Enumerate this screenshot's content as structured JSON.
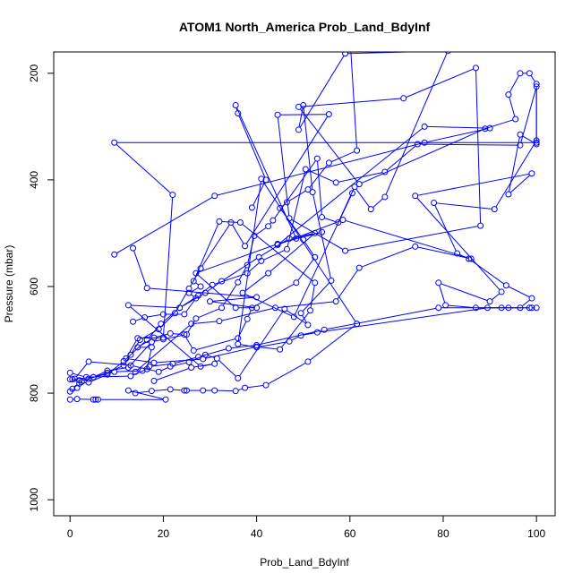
{
  "chart_data": {
    "type": "line",
    "title": "ATOM1 North_America Prob_Land_BdyInf",
    "xlabel": "Prob_Land_BdyInf",
    "ylabel": "Pressure (mbar)",
    "xlim": [
      -3.5,
      104
    ],
    "ylim": [
      1030,
      160
    ],
    "y_inverted": true,
    "grid": false,
    "legend": "none",
    "x_ticks": [
      0,
      20,
      40,
      60,
      80,
      100
    ],
    "y_ticks": [
      200,
      400,
      600,
      800,
      1000
    ],
    "series": [
      {
        "marker": "open-circle",
        "color": "#0000ff",
        "points": [
          {
            "x": 0,
            "y": 812
          },
          {
            "x": 1.5,
            "y": 811
          },
          {
            "x": 5,
            "y": 812
          },
          {
            "x": 5.5,
            "y": 812
          },
          {
            "x": 6,
            "y": 812
          },
          {
            "x": 20.5,
            "y": 812
          },
          {
            "x": 12.5,
            "y": 795
          },
          {
            "x": 14,
            "y": 800
          },
          {
            "x": 17.5,
            "y": 796
          },
          {
            "x": 21.5,
            "y": 793
          },
          {
            "x": 24.5,
            "y": 795
          },
          {
            "x": 25,
            "y": 795
          },
          {
            "x": 28.5,
            "y": 795
          },
          {
            "x": 31,
            "y": 795
          },
          {
            "x": 35.5,
            "y": 796
          },
          {
            "x": 37.5,
            "y": 790
          },
          {
            "x": 42,
            "y": 785
          },
          {
            "x": 51,
            "y": 741
          },
          {
            "x": 61.5,
            "y": 670
          },
          {
            "x": 41,
            "y": 398
          },
          {
            "x": 36,
            "y": 708
          },
          {
            "x": 40,
            "y": 714
          },
          {
            "x": 47,
            "y": 703
          },
          {
            "x": 49.5,
            "y": 692
          },
          {
            "x": 53,
            "y": 686
          },
          {
            "x": 89.5,
            "y": 640
          },
          {
            "x": 94,
            "y": 640
          },
          {
            "x": 98.5,
            "y": 640
          },
          {
            "x": 100,
            "y": 640
          },
          {
            "x": 99,
            "y": 640
          },
          {
            "x": 87,
            "y": 640
          },
          {
            "x": 80.5,
            "y": 635
          },
          {
            "x": 79,
            "y": 593
          },
          {
            "x": 90,
            "y": 628
          },
          {
            "x": 92.5,
            "y": 610
          },
          {
            "x": 74,
            "y": 430
          },
          {
            "x": 99,
            "y": 388
          },
          {
            "x": 94,
            "y": 427
          },
          {
            "x": 96.5,
            "y": 315
          },
          {
            "x": 100,
            "y": 333
          },
          {
            "x": 100,
            "y": 220
          },
          {
            "x": 98.5,
            "y": 200
          },
          {
            "x": 96.5,
            "y": 200
          },
          {
            "x": 94,
            "y": 240
          },
          {
            "x": 95.5,
            "y": 286
          },
          {
            "x": 89,
            "y": 304
          },
          {
            "x": 62,
            "y": 408
          },
          {
            "x": 49,
            "y": 263
          },
          {
            "x": 71.5,
            "y": 247
          },
          {
            "x": 87,
            "y": 190
          },
          {
            "x": 88,
            "y": 486
          },
          {
            "x": 59,
            "y": 533
          },
          {
            "x": 47,
            "y": 472
          },
          {
            "x": 44.5,
            "y": 278
          },
          {
            "x": 55.5,
            "y": 277
          },
          {
            "x": 37.5,
            "y": 524
          },
          {
            "x": 34.5,
            "y": 480
          },
          {
            "x": 28,
            "y": 566
          },
          {
            "x": 25.5,
            "y": 604
          },
          {
            "x": 22.5,
            "y": 650
          },
          {
            "x": 19,
            "y": 680
          },
          {
            "x": 15,
            "y": 700
          },
          {
            "x": 13,
            "y": 728
          },
          {
            "x": 11.5,
            "y": 748
          },
          {
            "x": 8,
            "y": 762
          },
          {
            "x": 5,
            "y": 770
          },
          {
            "x": 2.5,
            "y": 779
          },
          {
            "x": 1.5,
            "y": 790
          },
          {
            "x": 0,
            "y": 797
          }
        ]
      },
      {
        "marker": "open-circle",
        "color": "#0000ff",
        "points": [
          {
            "x": 0,
            "y": 774
          },
          {
            "x": 2,
            "y": 776
          },
          {
            "x": 4,
            "y": 773
          },
          {
            "x": 9.5,
            "y": 760
          },
          {
            "x": 15.5,
            "y": 758
          },
          {
            "x": 17,
            "y": 750
          },
          {
            "x": 22,
            "y": 745
          },
          {
            "x": 27.5,
            "y": 732
          },
          {
            "x": 34,
            "y": 716
          },
          {
            "x": 40,
            "y": 710
          },
          {
            "x": 54.5,
            "y": 681
          },
          {
            "x": 79,
            "y": 640
          },
          {
            "x": 92.5,
            "y": 640
          },
          {
            "x": 96.5,
            "y": 640
          },
          {
            "x": 99,
            "y": 622
          },
          {
            "x": 93.5,
            "y": 598
          },
          {
            "x": 85.5,
            "y": 548
          },
          {
            "x": 83,
            "y": 538
          },
          {
            "x": 78,
            "y": 443
          },
          {
            "x": 91,
            "y": 455
          },
          {
            "x": 100,
            "y": 326
          },
          {
            "x": 100,
            "y": 225
          },
          {
            "x": 96.5,
            "y": 335
          },
          {
            "x": 74.5,
            "y": 333
          },
          {
            "x": 67.5,
            "y": 385
          },
          {
            "x": 57,
            "y": 405
          },
          {
            "x": 50.5,
            "y": 380
          },
          {
            "x": 46.5,
            "y": 530
          },
          {
            "x": 41,
            "y": 552
          },
          {
            "x": 38,
            "y": 575
          },
          {
            "x": 30.5,
            "y": 597
          },
          {
            "x": 27.5,
            "y": 617
          },
          {
            "x": 23.5,
            "y": 640
          },
          {
            "x": 19.5,
            "y": 670
          },
          {
            "x": 16.5,
            "y": 700
          },
          {
            "x": 11.5,
            "y": 740
          },
          {
            "x": 8,
            "y": 765
          },
          {
            "x": 4,
            "y": 780
          },
          {
            "x": 2,
            "y": 782
          },
          {
            "x": 0.5,
            "y": 792
          }
        ]
      },
      {
        "marker": "open-circle",
        "color": "#0000ff",
        "points": [
          {
            "x": 1,
            "y": 773
          },
          {
            "x": 4,
            "y": 741
          },
          {
            "x": 13,
            "y": 748
          },
          {
            "x": 19,
            "y": 760
          },
          {
            "x": 21.5,
            "y": 750
          },
          {
            "x": 25.5,
            "y": 742
          },
          {
            "x": 29,
            "y": 728
          },
          {
            "x": 31.5,
            "y": 735
          },
          {
            "x": 36,
            "y": 772
          },
          {
            "x": 46,
            "y": 642
          },
          {
            "x": 51,
            "y": 672
          },
          {
            "x": 49.5,
            "y": 650
          },
          {
            "x": 56,
            "y": 589
          },
          {
            "x": 52,
            "y": 423
          },
          {
            "x": 50,
            "y": 260
          },
          {
            "x": 49,
            "y": 306
          },
          {
            "x": 59,
            "y": 163
          },
          {
            "x": 81,
            "y": 158
          },
          {
            "x": 67.5,
            "y": 432
          },
          {
            "x": 64.5,
            "y": 455
          },
          {
            "x": 61,
            "y": 413
          },
          {
            "x": 57.5,
            "y": 480
          },
          {
            "x": 54,
            "y": 470
          },
          {
            "x": 53,
            "y": 360
          },
          {
            "x": 43.5,
            "y": 476
          },
          {
            "x": 42.5,
            "y": 487
          },
          {
            "x": 39.5,
            "y": 505
          },
          {
            "x": 38,
            "y": 560
          },
          {
            "x": 36,
            "y": 592
          },
          {
            "x": 32.5,
            "y": 640
          },
          {
            "x": 27,
            "y": 660
          },
          {
            "x": 25,
            "y": 690
          },
          {
            "x": 20,
            "y": 699
          },
          {
            "x": 17.5,
            "y": 704
          },
          {
            "x": 12.5,
            "y": 752
          },
          {
            "x": 8,
            "y": 758
          },
          {
            "x": 5,
            "y": 770
          },
          {
            "x": 0.5,
            "y": 774
          }
        ]
      },
      {
        "marker": "open-circle",
        "color": "#0000ff",
        "points": [
          {
            "x": 0,
            "y": 762
          },
          {
            "x": 3.5,
            "y": 770
          },
          {
            "x": 13,
            "y": 768
          },
          {
            "x": 16.5,
            "y": 755
          },
          {
            "x": 17.5,
            "y": 714
          },
          {
            "x": 14.5,
            "y": 714
          },
          {
            "x": 18,
            "y": 696
          },
          {
            "x": 21.5,
            "y": 688
          },
          {
            "x": 24.5,
            "y": 690
          },
          {
            "x": 26.5,
            "y": 720
          },
          {
            "x": 36,
            "y": 697
          },
          {
            "x": 38,
            "y": 661
          },
          {
            "x": 39,
            "y": 640
          },
          {
            "x": 48.5,
            "y": 593
          },
          {
            "x": 52.5,
            "y": 545
          },
          {
            "x": 50,
            "y": 512
          },
          {
            "x": 45,
            "y": 453
          },
          {
            "x": 46.5,
            "y": 442
          },
          {
            "x": 51,
            "y": 418
          },
          {
            "x": 55.5,
            "y": 368
          },
          {
            "x": 61.5,
            "y": 345
          },
          {
            "x": 60,
            "y": 130
          }
        ]
      },
      {
        "marker": "open-circle",
        "color": "#0000ff",
        "points": [
          {
            "x": 13.5,
            "y": 666
          },
          {
            "x": 16,
            "y": 658
          },
          {
            "x": 20,
            "y": 652
          },
          {
            "x": 24.5,
            "y": 652
          },
          {
            "x": 27,
            "y": 622
          },
          {
            "x": 25.5,
            "y": 612
          },
          {
            "x": 28,
            "y": 600
          },
          {
            "x": 26.5,
            "y": 590
          },
          {
            "x": 32,
            "y": 478
          },
          {
            "x": 36.5,
            "y": 480
          },
          {
            "x": 52.5,
            "y": 593
          },
          {
            "x": 51.5,
            "y": 645
          },
          {
            "x": 45,
            "y": 718
          },
          {
            "x": 40,
            "y": 713
          },
          {
            "x": 28.5,
            "y": 736
          },
          {
            "x": 18,
            "y": 743
          },
          {
            "x": 12,
            "y": 735
          },
          {
            "x": 14.5,
            "y": 697
          },
          {
            "x": 20,
            "y": 696
          },
          {
            "x": 22,
            "y": 428
          },
          {
            "x": 9.5,
            "y": 330
          },
          {
            "x": 100,
            "y": 330
          }
        ]
      },
      {
        "marker": "open-circle",
        "color": "#0000ff",
        "points": [
          {
            "x": 13.5,
            "y": 528
          },
          {
            "x": 16.5,
            "y": 603
          },
          {
            "x": 40,
            "y": 620
          },
          {
            "x": 30,
            "y": 628
          },
          {
            "x": 40,
            "y": 640
          },
          {
            "x": 35.5,
            "y": 640
          },
          {
            "x": 27,
            "y": 575
          },
          {
            "x": 44.5,
            "y": 520
          },
          {
            "x": 54,
            "y": 498
          },
          {
            "x": 48.5,
            "y": 510
          },
          {
            "x": 35.5,
            "y": 260
          },
          {
            "x": 36,
            "y": 275
          },
          {
            "x": 42,
            "y": 400
          },
          {
            "x": 39,
            "y": 452
          }
        ]
      },
      {
        "marker": "open-circle",
        "color": "#0000ff",
        "points": [
          {
            "x": 9.5,
            "y": 540
          },
          {
            "x": 31,
            "y": 430
          },
          {
            "x": 76,
            "y": 330
          },
          {
            "x": 90,
            "y": 303
          },
          {
            "x": 76,
            "y": 300
          },
          {
            "x": 44.5,
            "y": 522
          },
          {
            "x": 58.5,
            "y": 475
          },
          {
            "x": 86,
            "y": 548
          },
          {
            "x": 74,
            "y": 525
          },
          {
            "x": 62,
            "y": 565
          },
          {
            "x": 57,
            "y": 628
          },
          {
            "x": 44,
            "y": 640
          },
          {
            "x": 32,
            "y": 665
          },
          {
            "x": 26,
            "y": 670
          },
          {
            "x": 14,
            "y": 760
          }
        ]
      },
      {
        "marker": "open-circle",
        "color": "#0000ff",
        "points": [
          {
            "x": 18,
            "y": 777
          },
          {
            "x": 26,
            "y": 752
          },
          {
            "x": 31,
            "y": 745
          },
          {
            "x": 28,
            "y": 750
          },
          {
            "x": 12.5,
            "y": 635
          },
          {
            "x": 23.5,
            "y": 640
          },
          {
            "x": 29,
            "y": 612
          },
          {
            "x": 32.5,
            "y": 590
          },
          {
            "x": 40.5,
            "y": 545
          },
          {
            "x": 47,
            "y": 510
          },
          {
            "x": 52.5,
            "y": 500
          },
          {
            "x": 42.5,
            "y": 575
          },
          {
            "x": 37,
            "y": 612
          },
          {
            "x": 48,
            "y": 657
          },
          {
            "x": 60.5,
            "y": 425
          }
        ]
      }
    ]
  }
}
